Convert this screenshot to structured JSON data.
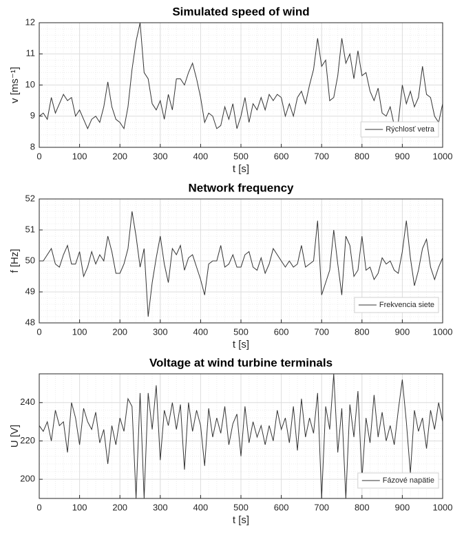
{
  "chart_data": [
    {
      "type": "line",
      "title": "Simulated speed of wind",
      "xlabel": "t [s]",
      "ylabel": "v [ms⁻¹]",
      "x": [
        0,
        10,
        20,
        30,
        40,
        50,
        60,
        70,
        80,
        90,
        100,
        110,
        120,
        130,
        140,
        150,
        160,
        170,
        180,
        190,
        200,
        210,
        220,
        230,
        240,
        250,
        260,
        270,
        280,
        290,
        300,
        310,
        320,
        330,
        340,
        350,
        360,
        370,
        380,
        390,
        400,
        410,
        420,
        430,
        440,
        450,
        460,
        470,
        480,
        490,
        500,
        510,
        520,
        530,
        540,
        550,
        560,
        570,
        580,
        590,
        600,
        610,
        620,
        630,
        640,
        650,
        660,
        670,
        680,
        690,
        700,
        710,
        720,
        730,
        740,
        750,
        760,
        770,
        780,
        790,
        800,
        810,
        820,
        830,
        840,
        850,
        860,
        870,
        880,
        890,
        900,
        910,
        920,
        930,
        940,
        950,
        960,
        970,
        980,
        990,
        1000
      ],
      "series": [
        {
          "name": "Rýchlosť vetra",
          "color": "#333333",
          "values": [
            9.0,
            9.1,
            8.9,
            9.6,
            9.1,
            9.4,
            9.7,
            9.5,
            9.6,
            9.0,
            9.2,
            8.9,
            8.6,
            8.9,
            9.0,
            8.8,
            9.3,
            10.1,
            9.3,
            8.9,
            8.8,
            8.6,
            9.3,
            10.5,
            11.4,
            12.0,
            10.4,
            10.2,
            9.4,
            9.2,
            9.5,
            8.9,
            9.7,
            9.2,
            10.2,
            10.2,
            10.0,
            10.4,
            10.7,
            10.2,
            9.6,
            8.8,
            9.1,
            9.0,
            8.6,
            8.7,
            9.3,
            8.9,
            9.4,
            8.6,
            9.0,
            9.6,
            8.8,
            9.4,
            9.2,
            9.6,
            9.2,
            9.7,
            9.5,
            9.7,
            9.6,
            9.0,
            9.4,
            9.0,
            9.6,
            9.8,
            9.4,
            10.0,
            10.5,
            11.5,
            10.6,
            10.8,
            9.5,
            9.6,
            10.3,
            11.5,
            10.7,
            11.0,
            10.2,
            11.1,
            10.3,
            10.4,
            9.8,
            9.5,
            9.9,
            9.1,
            9.0,
            9.3,
            8.7,
            8.8,
            10.0,
            9.4,
            9.8,
            9.3,
            9.6,
            10.6,
            9.7,
            9.6,
            9.0,
            8.8,
            9.4
          ]
        }
      ],
      "xlim": [
        0,
        1000
      ],
      "xticks": [
        0,
        100,
        200,
        300,
        400,
        500,
        600,
        700,
        800,
        900,
        1000
      ],
      "ylim": [
        8,
        12
      ],
      "yticks": [
        8,
        9,
        10,
        11,
        12
      ],
      "grid": true,
      "minor_grid": true,
      "legend": "lower right"
    },
    {
      "type": "line",
      "title": "Network frequency",
      "xlabel": "t [s]",
      "ylabel": "f [Hz]",
      "x": [
        0,
        10,
        20,
        30,
        40,
        50,
        60,
        70,
        80,
        90,
        100,
        110,
        120,
        130,
        140,
        150,
        160,
        170,
        180,
        190,
        200,
        210,
        220,
        230,
        240,
        250,
        260,
        270,
        280,
        290,
        300,
        310,
        320,
        330,
        340,
        350,
        360,
        370,
        380,
        390,
        400,
        410,
        420,
        430,
        440,
        450,
        460,
        470,
        480,
        490,
        500,
        510,
        520,
        530,
        540,
        550,
        560,
        570,
        580,
        590,
        600,
        610,
        620,
        630,
        640,
        650,
        660,
        670,
        680,
        690,
        700,
        710,
        720,
        730,
        740,
        750,
        760,
        770,
        780,
        790,
        800,
        810,
        820,
        830,
        840,
        850,
        860,
        870,
        880,
        890,
        900,
        910,
        920,
        930,
        940,
        950,
        960,
        970,
        980,
        990,
        1000
      ],
      "series": [
        {
          "name": "Frekvencia siete",
          "color": "#333333",
          "values": [
            50.0,
            50.0,
            50.2,
            50.4,
            49.9,
            49.8,
            50.2,
            50.5,
            49.9,
            49.9,
            50.3,
            49.5,
            49.8,
            50.3,
            49.9,
            50.2,
            50.0,
            50.8,
            50.3,
            49.6,
            49.6,
            49.9,
            50.4,
            51.6,
            50.8,
            49.8,
            50.4,
            48.2,
            49.3,
            50.1,
            50.8,
            49.9,
            49.3,
            50.4,
            50.2,
            50.5,
            49.7,
            50.1,
            50.2,
            49.8,
            49.4,
            48.9,
            49.9,
            50.0,
            50.0,
            50.5,
            49.8,
            49.9,
            50.2,
            49.8,
            49.8,
            50.2,
            50.3,
            49.8,
            49.7,
            50.1,
            49.6,
            49.9,
            50.4,
            50.2,
            50.0,
            49.8,
            50.0,
            49.8,
            49.9,
            50.5,
            49.8,
            49.9,
            50.0,
            51.3,
            48.9,
            49.3,
            49.7,
            51.0,
            49.9,
            48.9,
            50.8,
            50.5,
            49.5,
            49.7,
            50.8,
            49.7,
            49.8,
            49.4,
            49.6,
            50.1,
            49.9,
            50.0,
            49.7,
            49.6,
            50.3,
            51.3,
            50.1,
            49.2,
            49.7,
            50.4,
            50.7,
            49.8,
            49.4,
            49.8,
            50.1
          ]
        }
      ],
      "xlim": [
        0,
        1000
      ],
      "xticks": [
        0,
        100,
        200,
        300,
        400,
        500,
        600,
        700,
        800,
        900,
        1000
      ],
      "ylim": [
        48,
        52
      ],
      "yticks": [
        48,
        49,
        50,
        51,
        52
      ],
      "grid": true,
      "minor_grid": true,
      "legend": "lower right"
    },
    {
      "type": "line",
      "title": "Voltage at wind turbine terminals",
      "xlabel": "t [s]",
      "ylabel": "U [V]",
      "x": [
        0,
        10,
        20,
        30,
        40,
        50,
        60,
        70,
        80,
        90,
        100,
        110,
        120,
        130,
        140,
        150,
        160,
        170,
        180,
        190,
        200,
        210,
        220,
        230,
        240,
        250,
        260,
        270,
        280,
        290,
        300,
        310,
        320,
        330,
        340,
        350,
        360,
        370,
        380,
        390,
        400,
        410,
        420,
        430,
        440,
        450,
        460,
        470,
        480,
        490,
        500,
        510,
        520,
        530,
        540,
        550,
        560,
        570,
        580,
        590,
        600,
        610,
        620,
        630,
        640,
        650,
        660,
        670,
        680,
        690,
        700,
        710,
        720,
        730,
        740,
        750,
        760,
        770,
        780,
        790,
        800,
        810,
        820,
        830,
        840,
        850,
        860,
        870,
        880,
        890,
        900,
        910,
        920,
        930,
        940,
        950,
        960,
        970,
        980,
        990,
        1000
      ],
      "series": [
        {
          "name": "Fázové napätie",
          "color": "#333333",
          "values": [
            228,
            225,
            230,
            220,
            236,
            228,
            230,
            214,
            240,
            232,
            218,
            237,
            230,
            226,
            235,
            219,
            226,
            208,
            228,
            218,
            232,
            225,
            242,
            238,
            190,
            245,
            190,
            245,
            226,
            249,
            210,
            236,
            228,
            240,
            226,
            239,
            205,
            240,
            225,
            236,
            228,
            207,
            237,
            222,
            232,
            224,
            238,
            218,
            229,
            234,
            212,
            238,
            219,
            230,
            222,
            228,
            218,
            228,
            220,
            236,
            226,
            232,
            219,
            238,
            215,
            242,
            222,
            232,
            224,
            245,
            190,
            238,
            226,
            255,
            214,
            237,
            190,
            239,
            222,
            246,
            200,
            232,
            219,
            244,
            222,
            235,
            220,
            228,
            218,
            236,
            252,
            230,
            203,
            236,
            225,
            232,
            216,
            236,
            226,
            240,
            230
          ]
        }
      ],
      "xlim": [
        0,
        1000
      ],
      "xticks": [
        0,
        100,
        200,
        300,
        400,
        500,
        600,
        700,
        800,
        900,
        1000
      ],
      "ylim": [
        190,
        255
      ],
      "yticks": [
        200,
        220,
        240
      ],
      "grid": true,
      "minor_grid": true,
      "legend": "lower right"
    }
  ]
}
